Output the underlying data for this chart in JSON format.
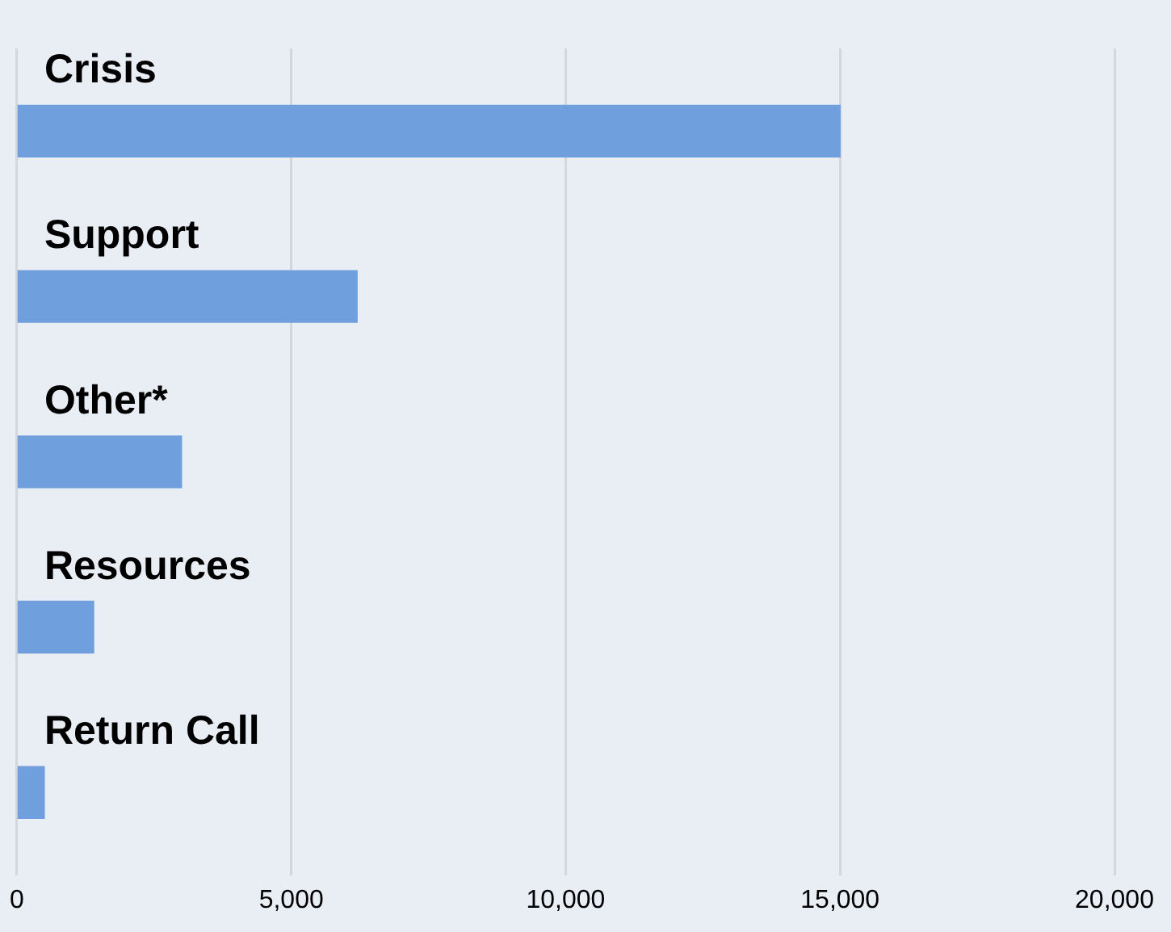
{
  "chart_data": {
    "type": "bar",
    "orientation": "horizontal",
    "categories": [
      "Crisis",
      "Support",
      "Other*",
      "Resources",
      "Return Call"
    ],
    "values": [
      15000,
      6200,
      3000,
      1400,
      500
    ],
    "color": "#6f9fdc",
    "xlim": [
      0,
      20000
    ],
    "xticks": [
      {
        "value": 0,
        "label": "0"
      },
      {
        "value": 5000,
        "label": "5,000"
      },
      {
        "value": 10000,
        "label": "10,000"
      },
      {
        "value": 15000,
        "label": "15,000"
      },
      {
        "value": 20000,
        "label": "20,000"
      }
    ],
    "grid": "x",
    "legend": false
  }
}
